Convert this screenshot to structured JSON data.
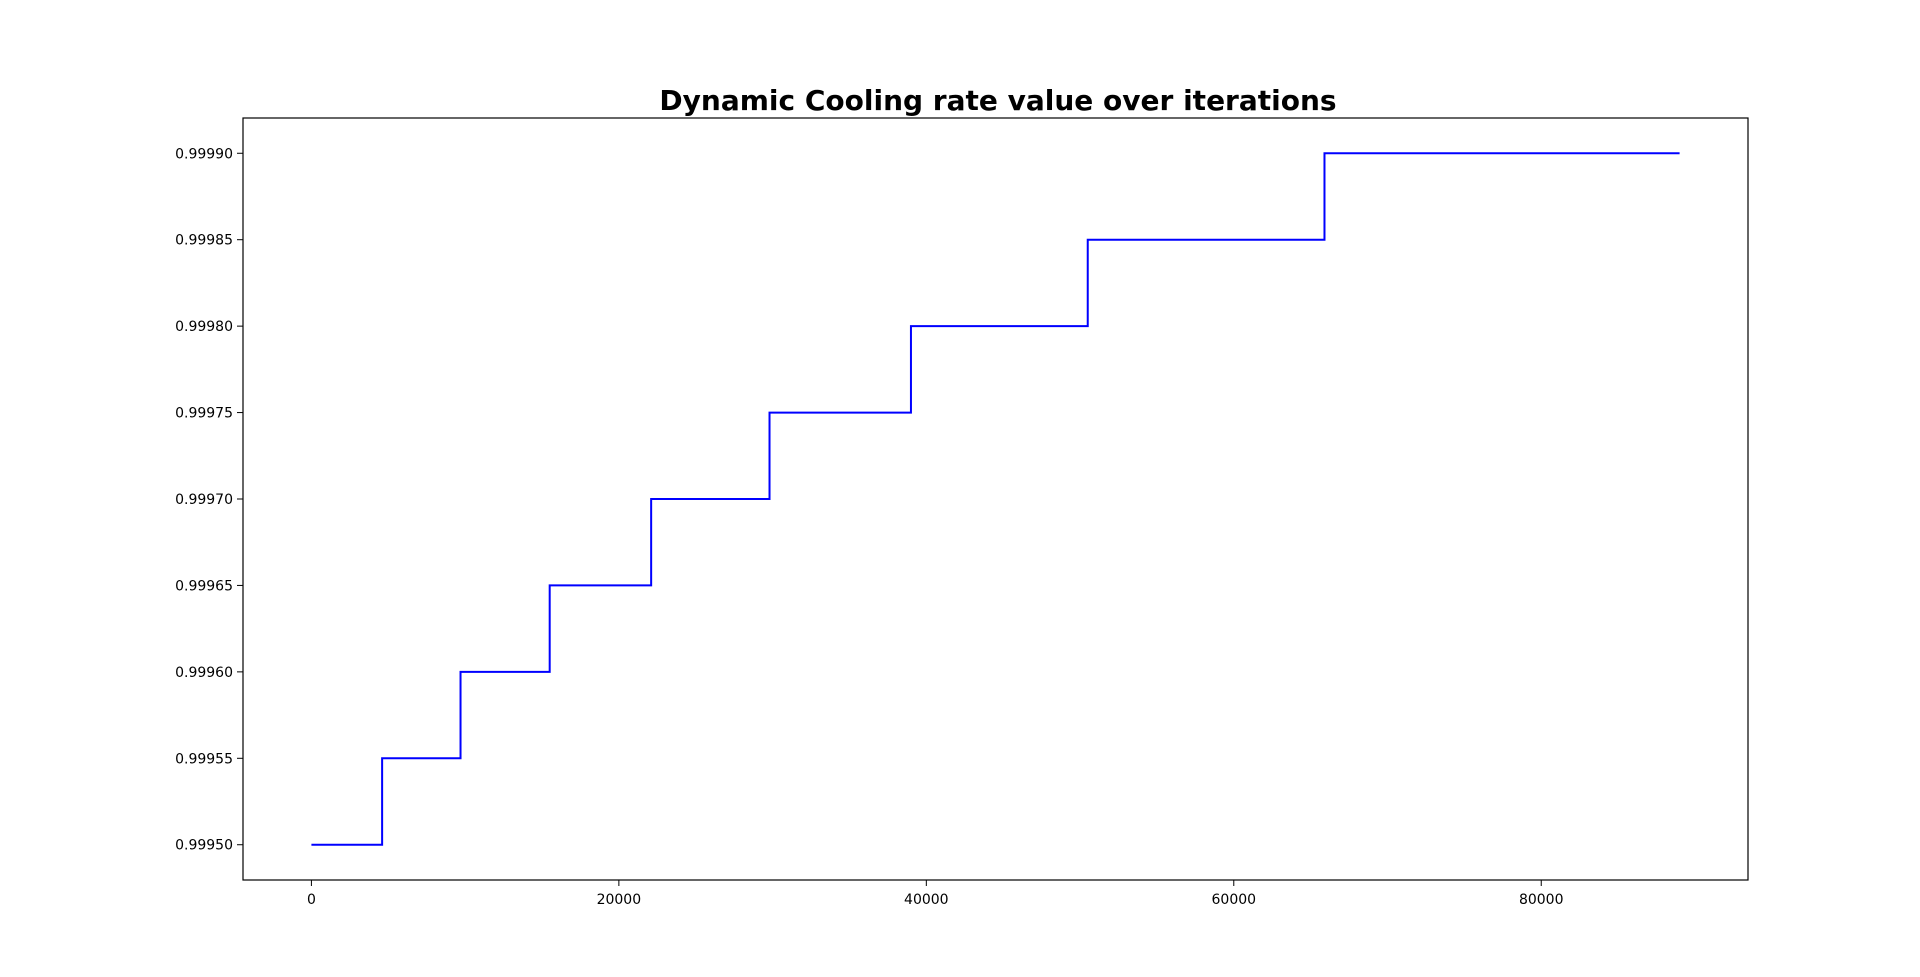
{
  "chart_data": {
    "type": "line",
    "title": "Dynamic Cooling rate value over iterations",
    "xlabel": "",
    "ylabel": "",
    "xlim": [
      -4450,
      93450
    ],
    "ylim": [
      0.9994796,
      0.9999204
    ],
    "xticks": [
      0,
      20000,
      40000,
      60000,
      80000
    ],
    "xtick_labels": [
      "0",
      "20000",
      "40000",
      "60000",
      "80000"
    ],
    "yticks": [
      0.9995,
      0.99955,
      0.9996,
      0.99965,
      0.9997,
      0.99975,
      0.9998,
      0.99985,
      0.9999
    ],
    "ytick_labels": [
      "0.99950",
      "0.99955",
      "0.99960",
      "0.99965",
      "0.99970",
      "0.99975",
      "0.99980",
      "0.99985",
      "0.99990"
    ],
    "grid": false,
    "series": [
      {
        "color": "#0000ff",
        "drawstyle": "steps",
        "x": [
          0,
          4600,
          4600,
          9700,
          9700,
          15500,
          15500,
          22100,
          22100,
          29800,
          29800,
          39000,
          39000,
          50500,
          50500,
          65900,
          65900,
          89000
        ],
        "y": [
          0.9995,
          0.9995,
          0.99955,
          0.99955,
          0.9996,
          0.9996,
          0.99965,
          0.99965,
          0.9997,
          0.9997,
          0.99975,
          0.99975,
          0.9998,
          0.9998,
          0.99985,
          0.99985,
          0.9999,
          0.9999
        ]
      }
    ]
  }
}
